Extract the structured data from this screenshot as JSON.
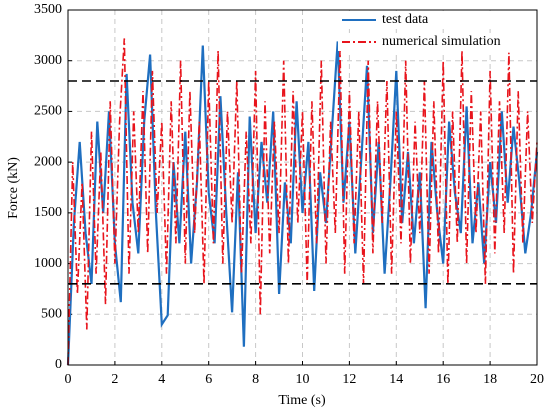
{
  "chart_data": {
    "type": "line",
    "xlabel": "Time (s)",
    "ylabel": "Force (kN)",
    "xlim": [
      0,
      20
    ],
    "xticks": [
      0,
      2,
      4,
      6,
      8,
      10,
      12,
      14,
      16,
      18,
      20
    ],
    "ylim": [
      0,
      3500
    ],
    "yticks": [
      0,
      500,
      1000,
      1500,
      2000,
      2500,
      3000,
      3500
    ],
    "grid": true,
    "legend": "upper right",
    "hlines": [
      800,
      2800
    ],
    "hline_color": "#000000",
    "series": [
      {
        "name": "test data",
        "color": "#1f6fc0",
        "style": "solid",
        "x": [
          0,
          0.25,
          0.5,
          0.75,
          1,
          1.25,
          1.5,
          1.75,
          2,
          2.25,
          2.5,
          2.75,
          3,
          3.25,
          3.5,
          3.75,
          4,
          4.25,
          4.5,
          4.75,
          5,
          5.25,
          5.5,
          5.75,
          6,
          6.25,
          6.5,
          6.75,
          7,
          7.25,
          7.5,
          7.75,
          8,
          8.25,
          8.5,
          8.75,
          9,
          9.25,
          9.5,
          9.75,
          10,
          10.25,
          10.5,
          10.75,
          11,
          11.25,
          11.5,
          11.75,
          12,
          12.25,
          12.5,
          12.75,
          13,
          13.25,
          13.5,
          13.75,
          14,
          14.25,
          14.5,
          14.75,
          15,
          15.25,
          15.5,
          15.75,
          16,
          16.25,
          16.5,
          16.75,
          17,
          17.25,
          17.5,
          17.75,
          18,
          18.25,
          18.5,
          18.75,
          19,
          19.25,
          19.5,
          19.75,
          20
        ],
        "values": [
          0,
          1400,
          2200,
          1300,
          800,
          2400,
          1500,
          2500,
          1200,
          620,
          2870,
          1600,
          1100,
          2400,
          3060,
          1500,
          400,
          490,
          2000,
          1200,
          2300,
          1000,
          1800,
          3150,
          1700,
          1200,
          2650,
          1500,
          520,
          1900,
          180,
          2450,
          1300,
          2200,
          1600,
          2500,
          700,
          1800,
          1200,
          2600,
          1500,
          2200,
          730,
          1900,
          1400,
          2300,
          3190,
          1600,
          2400,
          1100,
          2000,
          2950,
          1300,
          2200,
          900,
          1800,
          2900,
          1400,
          2100,
          1200,
          1900,
          560,
          2200,
          1500,
          1000,
          2400,
          1700,
          1300,
          2550,
          1200,
          1800,
          1000,
          2000,
          1400,
          2500,
          1600,
          2350,
          1800,
          1100,
          1500,
          2100
        ]
      },
      {
        "name": "numerical simulation",
        "color": "#e8141c",
        "style": "dashdot",
        "x": [
          0,
          0.2,
          0.4,
          0.6,
          0.8,
          1,
          1.2,
          1.4,
          1.6,
          1.8,
          2,
          2.2,
          2.4,
          2.6,
          2.8,
          3,
          3.2,
          3.4,
          3.6,
          3.8,
          4,
          4.2,
          4.4,
          4.6,
          4.8,
          5,
          5.2,
          5.4,
          5.6,
          5.8,
          6,
          6.2,
          6.4,
          6.6,
          6.8,
          7,
          7.2,
          7.4,
          7.6,
          7.8,
          8,
          8.2,
          8.4,
          8.6,
          8.8,
          9,
          9.2,
          9.4,
          9.6,
          9.8,
          10,
          10.2,
          10.4,
          10.6,
          10.8,
          11,
          11.2,
          11.4,
          11.6,
          11.8,
          12,
          12.2,
          12.4,
          12.6,
          12.8,
          13,
          13.2,
          13.4,
          13.6,
          13.8,
          14,
          14.2,
          14.4,
          14.6,
          14.8,
          15,
          15.2,
          15.4,
          15.6,
          15.8,
          16,
          16.2,
          16.4,
          16.6,
          16.8,
          17,
          17.2,
          17.4,
          17.6,
          17.8,
          18,
          18.2,
          18.4,
          18.6,
          18.8,
          19,
          19.2,
          19.4,
          19.6,
          19.8,
          20
        ],
        "values": [
          0,
          2000,
          700,
          1800,
          350,
          2300,
          900,
          2100,
          600,
          2600,
          1000,
          2400,
          3220,
          900,
          2500,
          1300,
          2700,
          1100,
          2900,
          1500,
          2400,
          900,
          2600,
          1200,
          3000,
          1000,
          2700,
          1300,
          2400,
          800,
          2800,
          1200,
          3100,
          1000,
          2500,
          1400,
          2800,
          900,
          2300,
          1200,
          2900,
          500,
          2600,
          1100,
          2400,
          1300,
          3000,
          1000,
          2700,
          1400,
          2500,
          800,
          2600,
          1200,
          3000,
          1000,
          2400,
          1300,
          3100,
          900,
          2700,
          1200,
          2500,
          800,
          3000,
          1100,
          2600,
          1400,
          2800,
          900,
          2500,
          1200,
          3000,
          1000,
          2400,
          1300,
          2800,
          900,
          2600,
          1100,
          3000,
          800,
          2500,
          1200,
          3100,
          1000,
          2700,
          1300,
          2500,
          800,
          2900,
          1100,
          2600,
          1300,
          3080,
          900,
          2700,
          1200,
          2500,
          1400,
          2200
        ]
      }
    ]
  }
}
